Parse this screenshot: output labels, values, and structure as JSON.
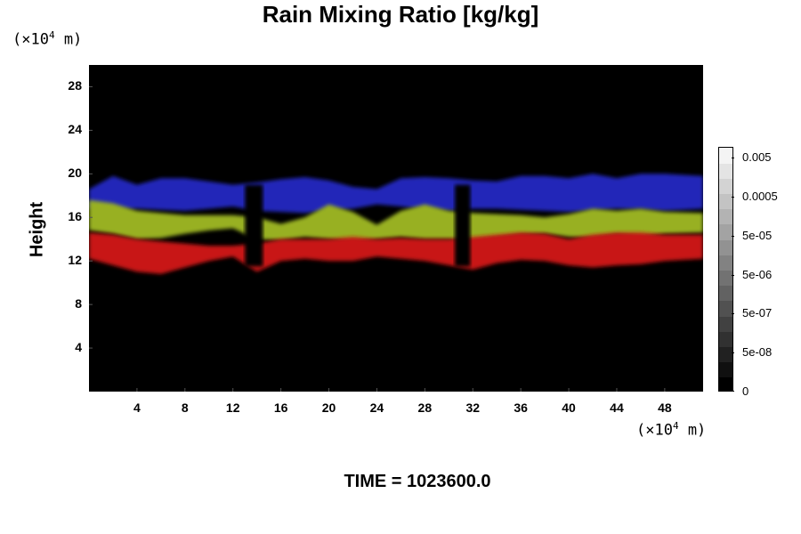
{
  "chart_data": {
    "type": "heatmap",
    "title": "Rain Mixing Ratio [kg/kg]",
    "ylabel": "Height",
    "y_unit": {
      "prefix": "(×10",
      "exp": "4",
      "suffix": " m)"
    },
    "x_unit": {
      "prefix": "(×10",
      "exp": "4",
      "suffix": " m)"
    },
    "xlim": [
      0,
      51.2
    ],
    "ylim": [
      0,
      30
    ],
    "x_ticks": [
      "4",
      "8",
      "12",
      "16",
      "20",
      "24",
      "28",
      "32",
      "36",
      "40",
      "44",
      "48"
    ],
    "x_tick_values": [
      4,
      8,
      12,
      16,
      20,
      24,
      28,
      32,
      36,
      40,
      44,
      48
    ],
    "y_ticks": [
      "4",
      "8",
      "12",
      "16",
      "20",
      "24",
      "28"
    ],
    "y_tick_values": [
      4,
      8,
      12,
      16,
      20,
      24,
      28
    ],
    "colorbar": {
      "labels": [
        "0.005",
        "0.0005",
        "5e-05",
        "5e-06",
        "5e-07",
        "5e-08",
        "0"
      ],
      "label_fractions": [
        0.955,
        0.795,
        0.637,
        0.478,
        0.319,
        0.159,
        0.0
      ],
      "levels": 16,
      "low_color": "#000000",
      "high_color": "#f4f4f4"
    },
    "bands": [
      {
        "name": "blue",
        "color": "#2026b8",
        "y_top": [
          18.6,
          19.8,
          19.0,
          19.6,
          19.6,
          19.3,
          19.0,
          19.2,
          19.5,
          19.7,
          19.4,
          18.8,
          18.6,
          19.6,
          19.7,
          19.6,
          19.4,
          19.3,
          19.8,
          19.8,
          19.6,
          20.0,
          19.6,
          20.0,
          20.0,
          19.8
        ],
        "y_bottom": [
          16.8,
          16.6,
          16.8,
          16.7,
          16.6,
          16.8,
          17.0,
          16.6,
          16.5,
          16.4,
          16.6,
          16.8,
          17.2,
          17.0,
          16.7,
          16.6,
          16.8,
          16.8,
          16.7,
          16.6,
          16.5,
          16.6,
          16.8,
          16.7,
          16.6,
          16.8
        ]
      },
      {
        "name": "green",
        "color": "#98b020",
        "y_top": [
          17.6,
          17.3,
          16.6,
          16.4,
          16.2,
          16.2,
          16.2,
          16.0,
          15.4,
          16.0,
          17.2,
          16.5,
          15.3,
          16.6,
          17.2,
          16.6,
          16.4,
          16.3,
          16.2,
          16.0,
          16.3,
          16.8,
          16.6,
          16.8,
          16.5,
          16.4
        ],
        "y_bottom": [
          14.8,
          14.5,
          14.0,
          14.1,
          14.5,
          14.8,
          15.0,
          14.0,
          13.9,
          14.2,
          14.0,
          13.8,
          14.0,
          14.2,
          14.0,
          14.0,
          13.8,
          14.1,
          14.4,
          14.5,
          14.2,
          14.1,
          14.4,
          14.2,
          14.5,
          14.6
        ]
      },
      {
        "name": "red",
        "color": "#c81414",
        "y_top": [
          14.6,
          14.4,
          14.0,
          13.8,
          13.6,
          13.4,
          13.4,
          13.6,
          14.0,
          14.0,
          14.0,
          14.2,
          14.0,
          14.1,
          14.0,
          14.0,
          14.2,
          14.4,
          14.6,
          14.5,
          14.0,
          14.4,
          14.6,
          14.6,
          14.4,
          14.4
        ],
        "y_bottom": [
          12.2,
          11.6,
          11.0,
          10.8,
          11.4,
          12.0,
          12.4,
          11.0,
          12.0,
          12.2,
          12.0,
          12.0,
          12.4,
          12.2,
          12.0,
          11.6,
          11.2,
          11.8,
          12.1,
          12.0,
          11.6,
          11.4,
          11.6,
          11.7,
          12.0,
          12.2
        ]
      }
    ],
    "band_x": [
      0,
      2,
      4,
      6,
      8,
      10,
      12,
      14,
      16,
      18,
      20,
      22,
      24,
      26,
      28,
      30,
      32,
      34,
      36,
      38,
      40,
      42,
      44,
      46,
      48,
      51.2
    ],
    "gaps_x": [
      [
        13.0,
        14.5
      ],
      [
        30.5,
        31.8
      ]
    ]
  },
  "footer": {
    "time_text": "TIME = 1023600.0"
  }
}
